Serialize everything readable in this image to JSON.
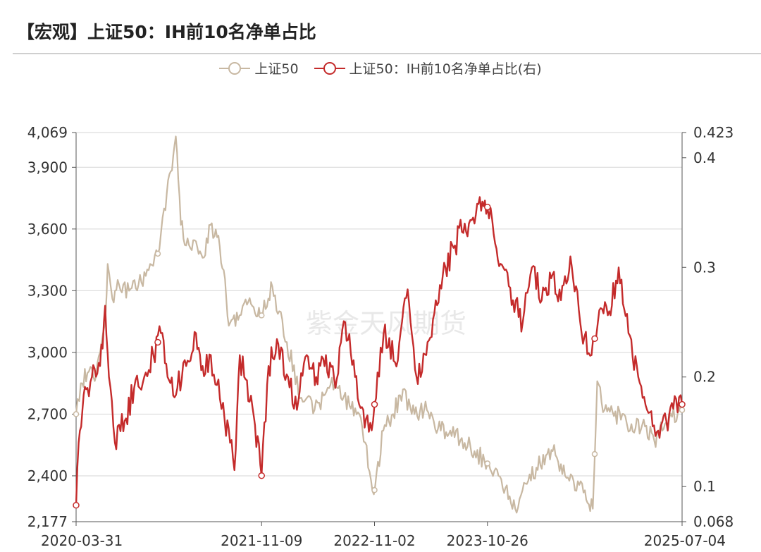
{
  "header": {
    "title": "【宏观】上证50：IH前10名净单占比"
  },
  "watermark": "紫金天风期货",
  "colors": {
    "left_series": "#c8b8a2",
    "right_series": "#c42b2b",
    "grid": "#d6d6d6",
    "axis": "#555555"
  },
  "chart_data": {
    "type": "line",
    "title": "【宏观】上证50：IH前10名净单占比",
    "legend_position": "top-center",
    "grid": true,
    "x_ticks": [
      "2020-03-31",
      "2021-11-09",
      "2022-11-02",
      "2023-10-26",
      "2025-07-04"
    ],
    "x_range": [
      "2020-03-31",
      "2025-07-04"
    ],
    "y_left": {
      "range": [
        2177,
        4069
      ],
      "ticks": [
        "2,177",
        "2,400",
        "2,700",
        "3,000",
        "3,300",
        "3,600",
        "3,900",
        "4,069"
      ]
    },
    "y_right": {
      "range": [
        0.068,
        0.423
      ],
      "ticks": [
        "0.068",
        "0.1",
        "0.2",
        "0.3",
        "0.4",
        "0.423"
      ]
    },
    "series": [
      {
        "name": "上证50",
        "axis": "left",
        "points": [
          [
            "2020-03-31",
            2700
          ],
          [
            "2020-04-15",
            2850
          ],
          [
            "2020-05-06",
            2900
          ],
          [
            "2020-05-25",
            2880
          ],
          [
            "2020-06-15",
            3000
          ],
          [
            "2020-07-03",
            3200
          ],
          [
            "2020-07-09",
            3430
          ],
          [
            "2020-07-24",
            3260
          ],
          [
            "2020-08-14",
            3330
          ],
          [
            "2020-09-15",
            3300
          ],
          [
            "2020-10-15",
            3330
          ],
          [
            "2020-11-16",
            3400
          ],
          [
            "2020-12-15",
            3480
          ],
          [
            "2021-01-04",
            3700
          ],
          [
            "2021-01-25",
            3880
          ],
          [
            "2021-02-10",
            4050
          ],
          [
            "2021-02-26",
            3620
          ],
          [
            "2021-03-15",
            3520
          ],
          [
            "2021-04-15",
            3540
          ],
          [
            "2021-05-06",
            3460
          ],
          [
            "2021-05-31",
            3620
          ],
          [
            "2021-06-21",
            3560
          ],
          [
            "2021-07-12",
            3400
          ],
          [
            "2021-07-28",
            3130
          ],
          [
            "2021-08-31",
            3180
          ],
          [
            "2021-09-15",
            3240
          ],
          [
            "2021-10-15",
            3220
          ],
          [
            "2021-11-09",
            3180
          ],
          [
            "2021-12-13",
            3320
          ],
          [
            "2022-01-04",
            3200
          ],
          [
            "2022-01-28",
            3050
          ],
          [
            "2022-03-15",
            2780
          ],
          [
            "2022-04-26",
            2720
          ],
          [
            "2022-05-25",
            2790
          ],
          [
            "2022-06-15",
            2840
          ],
          [
            "2022-07-05",
            2830
          ],
          [
            "2022-08-15",
            2740
          ],
          [
            "2022-09-15",
            2700
          ],
          [
            "2022-10-31",
            2310
          ],
          [
            "2022-11-30",
            2620
          ],
          [
            "2022-12-31",
            2700
          ],
          [
            "2023-01-31",
            2820
          ],
          [
            "2023-02-28",
            2700
          ],
          [
            "2023-04-17",
            2720
          ],
          [
            "2023-05-31",
            2620
          ],
          [
            "2023-06-30",
            2620
          ],
          [
            "2023-08-15",
            2560
          ],
          [
            "2023-09-15",
            2520
          ],
          [
            "2023-10-26",
            2460
          ],
          [
            "2023-11-30",
            2400
          ],
          [
            "2024-01-22",
            2240
          ],
          [
            "2024-02-28",
            2360
          ],
          [
            "2024-03-29",
            2440
          ],
          [
            "2024-05-20",
            2520
          ],
          [
            "2024-06-28",
            2400
          ],
          [
            "2024-08-30",
            2330
          ],
          [
            "2024-09-24",
            2240
          ],
          [
            "2024-10-08",
            2860
          ],
          [
            "2024-10-31",
            2720
          ],
          [
            "2024-11-30",
            2690
          ],
          [
            "2024-12-31",
            2700
          ],
          [
            "2025-01-20",
            2620
          ],
          [
            "2025-02-28",
            2650
          ],
          [
            "2025-04-07",
            2570
          ],
          [
            "2025-05-15",
            2660
          ],
          [
            "2025-07-04",
            2720
          ]
        ]
      },
      {
        "name": "上证50：IH前10名净单占比(右)",
        "axis": "right",
        "points": [
          [
            "2020-03-31",
            0.083
          ],
          [
            "2020-04-08",
            0.14
          ],
          [
            "2020-04-20",
            0.17
          ],
          [
            "2020-05-06",
            0.19
          ],
          [
            "2020-05-20",
            0.2
          ],
          [
            "2020-06-15",
            0.21
          ],
          [
            "2020-07-01",
            0.265
          ],
          [
            "2020-07-13",
            0.2
          ],
          [
            "2020-08-01",
            0.14
          ],
          [
            "2020-09-01",
            0.16
          ],
          [
            "2020-10-01",
            0.19
          ],
          [
            "2020-11-02",
            0.2
          ],
          [
            "2020-12-01",
            0.22
          ],
          [
            "2020-12-25",
            0.24
          ],
          [
            "2021-01-15",
            0.2
          ],
          [
            "2021-02-15",
            0.19
          ],
          [
            "2021-03-15",
            0.21
          ],
          [
            "2021-04-15",
            0.24
          ],
          [
            "2021-05-06",
            0.21
          ],
          [
            "2021-06-01",
            0.22
          ],
          [
            "2021-06-30",
            0.18
          ],
          [
            "2021-07-15",
            0.16
          ],
          [
            "2021-08-01",
            0.14
          ],
          [
            "2021-08-15",
            0.115
          ],
          [
            "2021-09-01",
            0.22
          ],
          [
            "2021-09-15",
            0.2
          ],
          [
            "2021-10-15",
            0.165
          ],
          [
            "2021-11-09",
            0.11
          ],
          [
            "2021-12-01",
            0.21
          ],
          [
            "2022-01-01",
            0.23
          ],
          [
            "2022-02-01",
            0.2
          ],
          [
            "2022-03-01",
            0.17
          ],
          [
            "2022-04-01",
            0.22
          ],
          [
            "2022-05-01",
            0.2
          ],
          [
            "2022-06-01",
            0.22
          ],
          [
            "2022-07-01",
            0.19
          ],
          [
            "2022-08-01",
            0.25
          ],
          [
            "2022-09-01",
            0.2
          ],
          [
            "2022-10-15",
            0.15
          ],
          [
            "2022-11-02",
            0.175
          ],
          [
            "2022-12-01",
            0.24
          ],
          [
            "2023-01-15",
            0.215
          ],
          [
            "2023-02-15",
            0.28
          ],
          [
            "2023-03-15",
            0.2
          ],
          [
            "2023-04-15",
            0.22
          ],
          [
            "2023-05-15",
            0.27
          ],
          [
            "2023-06-15",
            0.3
          ],
          [
            "2023-07-15",
            0.32
          ],
          [
            "2023-08-15",
            0.34
          ],
          [
            "2023-09-15",
            0.34
          ],
          [
            "2023-10-10",
            0.36
          ],
          [
            "2023-10-26",
            0.355
          ],
          [
            "2023-11-15",
            0.33
          ],
          [
            "2023-12-15",
            0.3
          ],
          [
            "2024-01-15",
            0.27
          ],
          [
            "2024-02-15",
            0.25
          ],
          [
            "2024-03-15",
            0.3
          ],
          [
            "2024-04-15",
            0.27
          ],
          [
            "2024-05-15",
            0.29
          ],
          [
            "2024-06-15",
            0.27
          ],
          [
            "2024-07-15",
            0.31
          ],
          [
            "2024-08-15",
            0.25
          ],
          [
            "2024-09-20",
            0.22
          ],
          [
            "2024-10-10",
            0.25
          ],
          [
            "2024-11-15",
            0.26
          ],
          [
            "2024-12-15",
            0.3
          ],
          [
            "2025-01-15",
            0.24
          ],
          [
            "2025-02-15",
            0.2
          ],
          [
            "2025-03-15",
            0.17
          ],
          [
            "2025-04-15",
            0.15
          ],
          [
            "2025-05-15",
            0.16
          ],
          [
            "2025-06-15",
            0.18
          ],
          [
            "2025-07-04",
            0.175
          ]
        ],
        "markers": [
          "2020-03-31",
          "2020-12-15",
          "2021-11-09",
          "2022-11-02",
          "2023-10-26",
          "2024-09-30",
          "2025-07-04"
        ]
      }
    ]
  }
}
